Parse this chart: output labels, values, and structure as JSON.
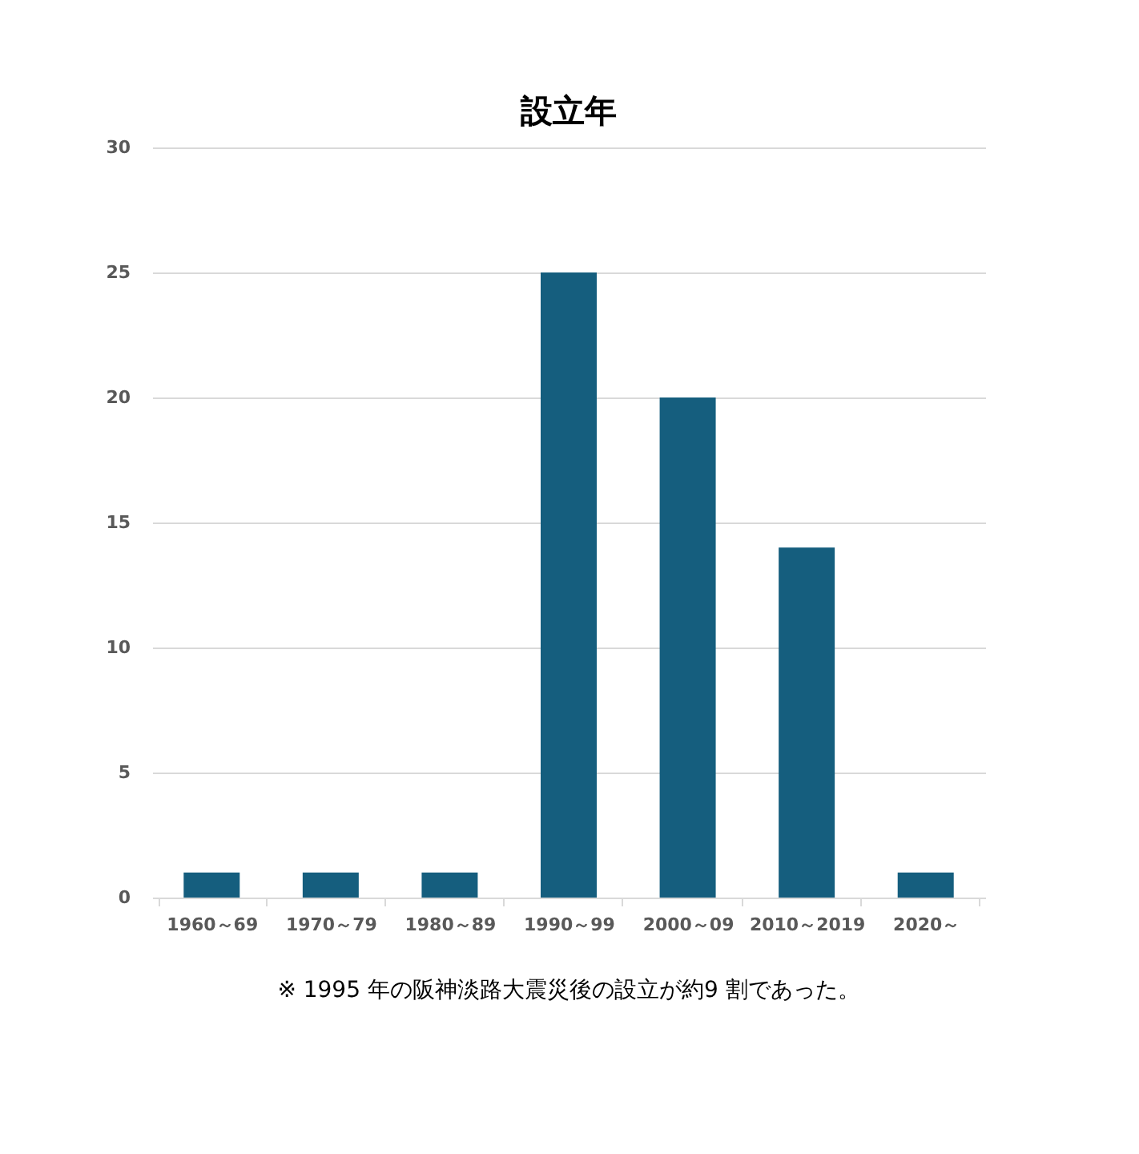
{
  "chart_data": {
    "type": "bar",
    "title": "設立年",
    "categories": [
      "1960～69",
      "1970～79",
      "1980～89",
      "1990～99",
      "2000～09",
      "2010～2019",
      "2020～"
    ],
    "values": [
      1,
      1,
      1,
      25,
      20,
      14,
      1
    ],
    "color": "#155e7e",
    "ylim": [
      0,
      30
    ],
    "yticks": [
      0,
      5,
      10,
      15,
      20,
      25,
      30
    ],
    "grid": "y",
    "annotations": [
      "※ 1995 年の阪神淡路大震災後の設立が約9 割であった。"
    ]
  }
}
